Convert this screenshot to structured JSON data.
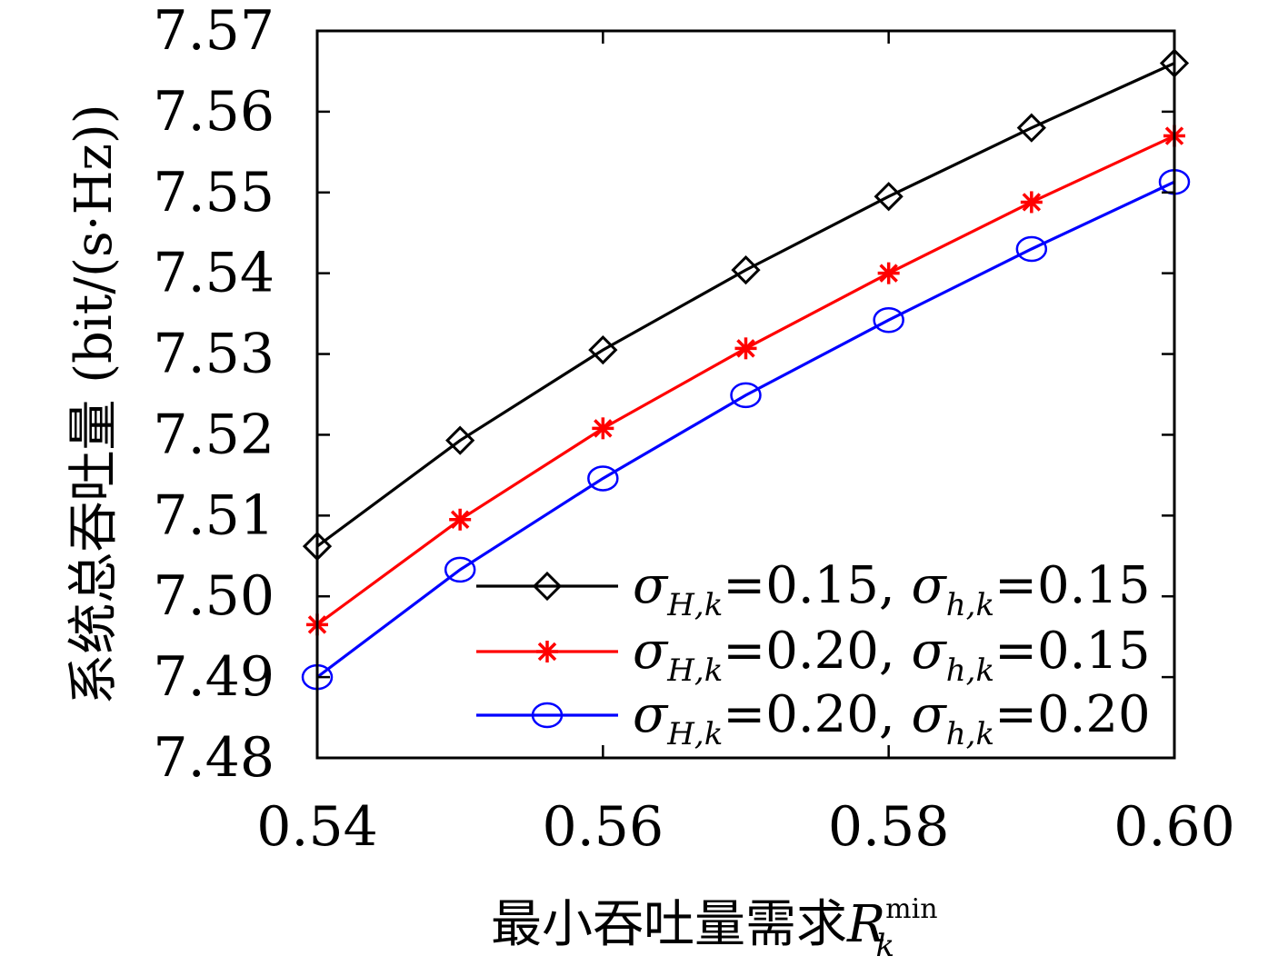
{
  "chart_data": {
    "type": "line",
    "xlabel_text": "最小吞吐量需求",
    "xlabel_symbol": "R",
    "xlabel_sub": "k",
    "xlabel_sup": "min",
    "ylabel": "系统总吞吐量 (bit/(s·Hz))",
    "xlim": [
      0.54,
      0.6
    ],
    "ylim": [
      7.48,
      7.57
    ],
    "x": [
      0.54,
      0.55,
      0.56,
      0.57,
      0.58,
      0.59,
      0.6
    ],
    "x_ticks": [
      0.54,
      0.56,
      0.58,
      0.6
    ],
    "x_tick_labels": [
      "0.54",
      "0.56",
      "0.58",
      "0.60"
    ],
    "y_ticks": [
      7.48,
      7.49,
      7.5,
      7.51,
      7.52,
      7.53,
      7.54,
      7.55,
      7.56,
      7.57
    ],
    "y_tick_labels": [
      "7.48",
      "7.49",
      "7.50",
      "7.51",
      "7.52",
      "7.53",
      "7.54",
      "7.55",
      "7.56",
      "7.57"
    ],
    "grid": false,
    "legend_position": "bottom-right",
    "series": [
      {
        "name_sigma1_sub": "H,k",
        "name_value1": "=0.15,",
        "name_sigma2_sub": "h,k",
        "name_value2": "=0.15",
        "color": "#000000",
        "marker": "diamond",
        "values": [
          7.5062,
          7.5193,
          7.5305,
          7.5404,
          7.5495,
          7.558,
          7.566
        ]
      },
      {
        "name_sigma1_sub": "H,k",
        "name_value1": "=0.20,",
        "name_sigma2_sub": "h,k",
        "name_value2": "=0.15",
        "color": "#ff0000",
        "marker": "asterisk",
        "values": [
          7.4965,
          7.5095,
          7.5208,
          7.5307,
          7.54,
          7.5488,
          7.557
        ]
      },
      {
        "name_sigma1_sub": "H,k",
        "name_value1": "=0.20,",
        "name_sigma2_sub": "h,k",
        "name_value2": "=0.20",
        "color": "#0000ff",
        "marker": "circle",
        "values": [
          7.49,
          7.5033,
          7.5146,
          7.5249,
          7.5342,
          7.543,
          7.5513
        ]
      }
    ]
  }
}
